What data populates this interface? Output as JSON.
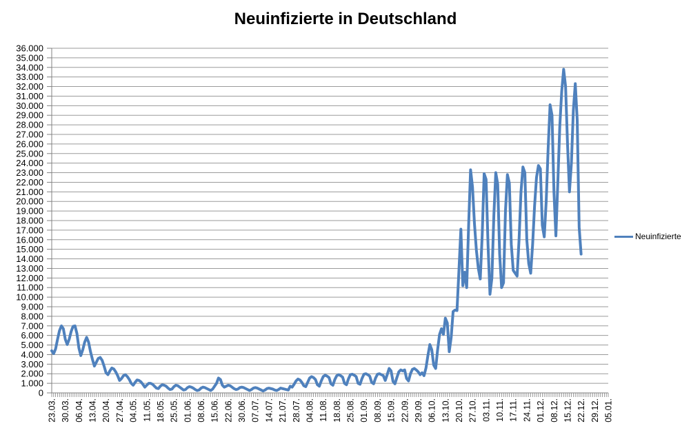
{
  "chart_data": {
    "type": "line",
    "title": "Neuinfizierte in Deutschland",
    "legend_position": "right",
    "grid": true,
    "colors": {
      "series_line": "#4F81BD",
      "gridline": "#9a9a9a",
      "axis": "#808080",
      "text": "#000000",
      "background": "#ffffff"
    },
    "y_axis": {
      "min": 0,
      "max": 36000,
      "step": 1000,
      "tick_labels": [
        "0",
        "1.000",
        "2.000",
        "3.000",
        "4.000",
        "5.000",
        "6.000",
        "7.000",
        "8.000",
        "9.000",
        "10.000",
        "11.000",
        "12.000",
        "13.000",
        "14.000",
        "15.000",
        "16.000",
        "17.000",
        "18.000",
        "19.000",
        "20.000",
        "21.000",
        "22.000",
        "23.000",
        "24.000",
        "25.000",
        "26.000",
        "27.000",
        "28.000",
        "29.000",
        "30.000",
        "31.000",
        "32.000",
        "33.000",
        "34.000",
        "35.000",
        "36.000"
      ]
    },
    "x_axis": {
      "total_categories": 288,
      "label_every": 7,
      "tick_labels": [
        "23.03.",
        "30.03.",
        "06.04.",
        "13.04.",
        "20.04.",
        "27.04.",
        "04.05.",
        "11.05.",
        "18.05.",
        "25.05.",
        "01.06.",
        "08.06.",
        "15.06.",
        "22.06.",
        "30.06.",
        "07.07.",
        "14.07.",
        "21.07.",
        "28.07.",
        "04.08.",
        "11.08.",
        "18.08.",
        "25.08.",
        "01.09.",
        "08.09.",
        "15.09.",
        "22.09.",
        "29.09.",
        "06.10.",
        "13.10.",
        "20.10.",
        "27.10.",
        "03.11.",
        "10.11.",
        "17.11.",
        "24.11.",
        "01.12.",
        "08.12.",
        "15.12.",
        "22.12.",
        "29.12.",
        "05.01."
      ]
    },
    "series": [
      {
        "name": "Neuinfizierte",
        "color": "#4F81BD",
        "values": [
          4400,
          4100,
          4600,
          5600,
          6500,
          7000,
          6700,
          5600,
          5050,
          5600,
          6400,
          6950,
          7000,
          6200,
          4700,
          3900,
          4500,
          5300,
          5800,
          5300,
          4300,
          3500,
          2800,
          3200,
          3600,
          3700,
          3400,
          2800,
          2100,
          1900,
          2300,
          2600,
          2500,
          2200,
          1800,
          1300,
          1500,
          1800,
          1900,
          1700,
          1400,
          1000,
          800,
          1100,
          1350,
          1300,
          1150,
          900,
          600,
          800,
          1000,
          1000,
          900,
          700,
          500,
          450,
          700,
          850,
          800,
          700,
          500,
          350,
          400,
          650,
          800,
          750,
          600,
          450,
          300,
          350,
          550,
          650,
          600,
          500,
          350,
          250,
          300,
          500,
          600,
          550,
          450,
          350,
          250,
          400,
          700,
          1000,
          1550,
          1400,
          800,
          600,
          700,
          800,
          750,
          600,
          450,
          350,
          400,
          550,
          600,
          550,
          450,
          350,
          250,
          350,
          500,
          550,
          500,
          400,
          300,
          200,
          300,
          450,
          500,
          450,
          400,
          300,
          250,
          350,
          500,
          450,
          400,
          350,
          300,
          700,
          600,
          900,
          1250,
          1450,
          1350,
          1100,
          750,
          650,
          1100,
          1550,
          1700,
          1600,
          1400,
          850,
          700,
          1250,
          1700,
          1850,
          1750,
          1600,
          950,
          800,
          1400,
          1800,
          1900,
          1800,
          1650,
          1000,
          850,
          1450,
          1900,
          1950,
          1850,
          1700,
          1000,
          900,
          1500,
          1950,
          2000,
          1900,
          1750,
          1100,
          950,
          1550,
          1950,
          2000,
          1900,
          1800,
          1300,
          1900,
          2550,
          2300,
          1200,
          950,
          1600,
          2200,
          2400,
          2300,
          2400,
          1500,
          1250,
          2000,
          2450,
          2550,
          2400,
          2200,
          1900,
          2100,
          1800,
          2600,
          3900,
          5050,
          4500,
          2900,
          2550,
          4500,
          6100,
          6700,
          6100,
          7800,
          7300,
          4300,
          5800,
          8500,
          8650,
          8600,
          12800,
          17100,
          11200,
          12600,
          11000,
          17500,
          23300,
          21500,
          17700,
          14900,
          13000,
          11900,
          16500,
          22900,
          22300,
          15500,
          10300,
          12000,
          18500,
          23000,
          21800,
          14500,
          11000,
          11500,
          19000,
          22800,
          21900,
          15500,
          12800,
          12500,
          12200,
          16000,
          21000,
          23600,
          23000,
          16000,
          13500,
          12500,
          15500,
          19500,
          22500,
          23750,
          23400,
          17500,
          16300,
          20000,
          25500,
          30100,
          29000,
          21000,
          16400,
          22000,
          27800,
          31500,
          33800,
          32000,
          26000,
          21000,
          24000,
          29500,
          32300,
          28500,
          17300,
          14500
        ]
      }
    ]
  }
}
